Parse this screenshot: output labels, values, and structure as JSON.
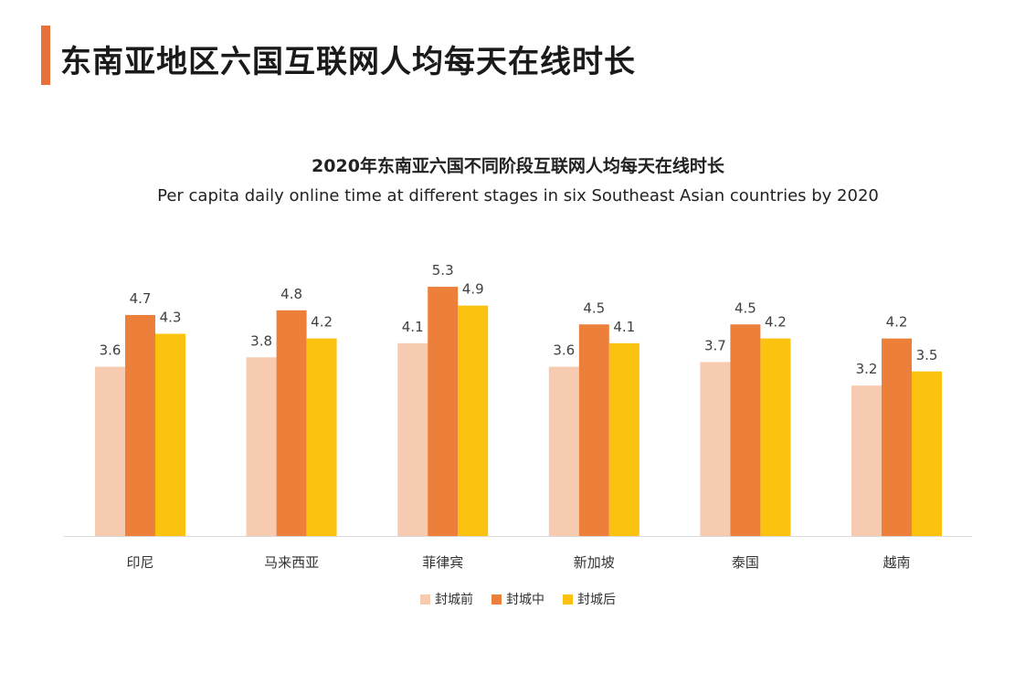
{
  "page": {
    "title": "东南亚地区六国互联网人均每天在线时长",
    "accent_color": "#e8703a"
  },
  "chart_data": {
    "type": "bar",
    "title": "2020年东南亚六国不同阶段互联网人均每天在线时长",
    "subtitle": "Per capita daily online time at different stages in six Southeast Asian countries by 2020",
    "categories": [
      "印尼",
      "马来西亚",
      "菲律宾",
      "新加坡",
      "泰国",
      "越南"
    ],
    "series": [
      {
        "name": "封城前",
        "color": "#f6cbb0",
        "values": [
          3.6,
          3.8,
          4.1,
          3.6,
          3.7,
          3.2
        ]
      },
      {
        "name": "封城中",
        "color": "#ec7f3a",
        "values": [
          4.7,
          4.8,
          5.3,
          4.5,
          4.5,
          4.2
        ]
      },
      {
        "name": "封城后",
        "color": "#fbc20f",
        "values": [
          4.3,
          4.2,
          4.9,
          4.1,
          4.2,
          3.5
        ]
      }
    ],
    "legend_position": "bottom",
    "grid": false,
    "xlabel": "",
    "ylabel": ""
  }
}
